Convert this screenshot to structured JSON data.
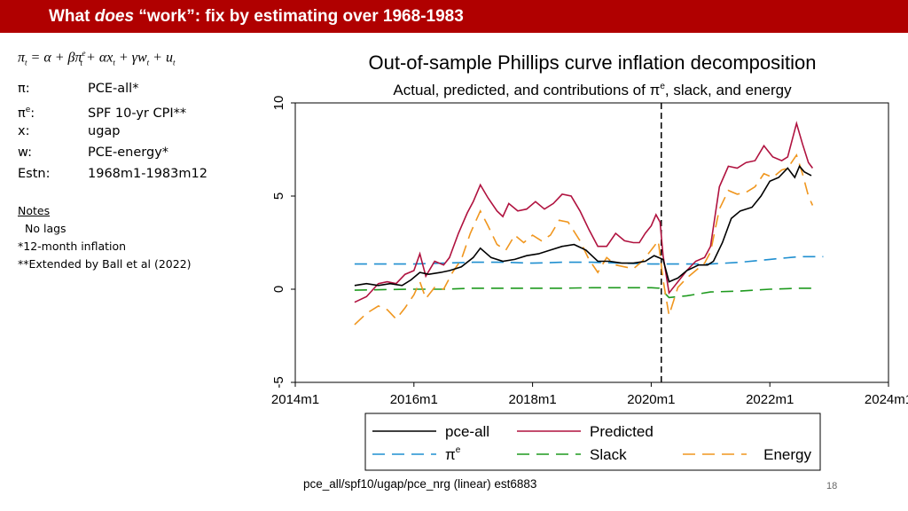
{
  "slide": {
    "title_pre": "What ",
    "title_em": "does",
    "title_post": " “work”: fix by estimating over 1968-1983",
    "page_number": "18",
    "footer": "pce_all/spf10/ugap/pce_nrg (linear) est6883"
  },
  "equation": {
    "pi": "π",
    "eq": " = α + βπ",
    "plus_ax": " + αx",
    "plus_gw": " + γw",
    "plus_u": " + u",
    "sub": "t",
    "sup": "e"
  },
  "definitions": [
    {
      "key": "π:",
      "value": "PCE-all*"
    },
    {
      "key_base": "π",
      "key_sup": "e",
      "key_colon": ":",
      "value": "SPF 10-yr CPI**"
    },
    {
      "key": "x:",
      "value": "ugap"
    },
    {
      "key": "w:",
      "value": "PCE-energy*"
    },
    {
      "key": "Estn:",
      "value": "1968m1-1983m12"
    }
  ],
  "notes": {
    "title": "Notes",
    "lines": [
      "No lags",
      "*12-month inflation",
      "**Extended by Ball et al (2022)"
    ]
  },
  "chart_data": {
    "type": "line",
    "title": "Out-of-sample Phillips curve inflation decomposition",
    "subtitle_pre": "Actual, predicted, and contributions of π",
    "subtitle_sup": "e",
    "subtitle_post": ", slack, and energy",
    "xlim": [
      2014.0,
      2024.0
    ],
    "ylim": [
      -5,
      10
    ],
    "xticks": [
      {
        "value": 2014.0,
        "label": "2014m1"
      },
      {
        "value": 2016.0,
        "label": "2016m1"
      },
      {
        "value": 2018.0,
        "label": "2018m1"
      },
      {
        "value": 2020.0,
        "label": "2020m1"
      },
      {
        "value": 2022.0,
        "label": "2022m1"
      },
      {
        "value": 2024.0,
        "label": "2024m1"
      }
    ],
    "yticks": [
      {
        "value": -5,
        "label": "-5"
      },
      {
        "value": 0,
        "label": "0"
      },
      {
        "value": 5,
        "label": "5"
      },
      {
        "value": 10,
        "label": "10"
      }
    ],
    "vline_x": 2020.17,
    "series": [
      {
        "name": "pce-all",
        "color": "#000000",
        "dash": "none",
        "points": [
          [
            2015.0,
            0.2
          ],
          [
            2015.2,
            0.3
          ],
          [
            2015.4,
            0.2
          ],
          [
            2015.6,
            0.3
          ],
          [
            2015.8,
            0.2
          ],
          [
            2015.95,
            0.5
          ],
          [
            2016.1,
            0.9
          ],
          [
            2016.25,
            0.8
          ],
          [
            2016.45,
            0.9
          ],
          [
            2016.6,
            1.0
          ],
          [
            2016.8,
            1.2
          ],
          [
            2017.0,
            1.7
          ],
          [
            2017.12,
            2.2
          ],
          [
            2017.3,
            1.7
          ],
          [
            2017.5,
            1.5
          ],
          [
            2017.7,
            1.6
          ],
          [
            2017.9,
            1.8
          ],
          [
            2018.1,
            1.9
          ],
          [
            2018.3,
            2.1
          ],
          [
            2018.5,
            2.3
          ],
          [
            2018.7,
            2.4
          ],
          [
            2018.9,
            2.1
          ],
          [
            2019.1,
            1.5
          ],
          [
            2019.3,
            1.5
          ],
          [
            2019.5,
            1.4
          ],
          [
            2019.7,
            1.4
          ],
          [
            2019.9,
            1.5
          ],
          [
            2020.05,
            1.8
          ],
          [
            2020.2,
            1.6
          ],
          [
            2020.3,
            0.4
          ],
          [
            2020.45,
            0.6
          ],
          [
            2020.6,
            1.0
          ],
          [
            2020.8,
            1.3
          ],
          [
            2020.95,
            1.3
          ],
          [
            2021.05,
            1.5
          ],
          [
            2021.2,
            2.5
          ],
          [
            2021.35,
            3.8
          ],
          [
            2021.5,
            4.2
          ],
          [
            2021.7,
            4.4
          ],
          [
            2021.85,
            5.0
          ],
          [
            2022.0,
            5.8
          ],
          [
            2022.15,
            6.0
          ],
          [
            2022.3,
            6.5
          ],
          [
            2022.42,
            6.0
          ],
          [
            2022.5,
            6.6
          ],
          [
            2022.58,
            6.3
          ],
          [
            2022.7,
            6.1
          ]
        ]
      },
      {
        "name": "Predicted",
        "color": "#b0123f",
        "dash": "none",
        "points": [
          [
            2015.0,
            -0.7
          ],
          [
            2015.2,
            -0.4
          ],
          [
            2015.4,
            0.3
          ],
          [
            2015.55,
            0.4
          ],
          [
            2015.7,
            0.3
          ],
          [
            2015.85,
            0.8
          ],
          [
            2016.0,
            1.0
          ],
          [
            2016.1,
            1.9
          ],
          [
            2016.2,
            0.7
          ],
          [
            2016.35,
            1.5
          ],
          [
            2016.5,
            1.3
          ],
          [
            2016.6,
            1.7
          ],
          [
            2016.75,
            3.0
          ],
          [
            2016.9,
            4.1
          ],
          [
            2017.0,
            4.7
          ],
          [
            2017.12,
            5.6
          ],
          [
            2017.25,
            4.9
          ],
          [
            2017.4,
            4.2
          ],
          [
            2017.5,
            3.9
          ],
          [
            2017.6,
            4.6
          ],
          [
            2017.75,
            4.2
          ],
          [
            2017.9,
            4.3
          ],
          [
            2018.05,
            4.7
          ],
          [
            2018.2,
            4.3
          ],
          [
            2018.35,
            4.6
          ],
          [
            2018.5,
            5.1
          ],
          [
            2018.65,
            5.0
          ],
          [
            2018.8,
            4.2
          ],
          [
            2018.95,
            3.2
          ],
          [
            2019.1,
            2.3
          ],
          [
            2019.25,
            2.3
          ],
          [
            2019.4,
            3.0
          ],
          [
            2019.55,
            2.6
          ],
          [
            2019.7,
            2.5
          ],
          [
            2019.8,
            2.5
          ],
          [
            2019.9,
            3.0
          ],
          [
            2020.0,
            3.4
          ],
          [
            2020.08,
            4.0
          ],
          [
            2020.15,
            3.6
          ],
          [
            2020.2,
            1.8
          ],
          [
            2020.3,
            -0.2
          ],
          [
            2020.45,
            0.4
          ],
          [
            2020.6,
            1.0
          ],
          [
            2020.75,
            1.5
          ],
          [
            2020.9,
            1.7
          ],
          [
            2021.0,
            2.3
          ],
          [
            2021.15,
            5.5
          ],
          [
            2021.3,
            6.6
          ],
          [
            2021.45,
            6.5
          ],
          [
            2021.6,
            6.8
          ],
          [
            2021.75,
            6.9
          ],
          [
            2021.9,
            7.7
          ],
          [
            2022.05,
            7.1
          ],
          [
            2022.2,
            6.9
          ],
          [
            2022.3,
            7.1
          ],
          [
            2022.45,
            8.9
          ],
          [
            2022.55,
            7.8
          ],
          [
            2022.65,
            6.8
          ],
          [
            2022.72,
            6.5
          ]
        ]
      },
      {
        "name": "πe",
        "color": "#1f8fd0",
        "dash": "14,8",
        "points": [
          [
            2015.0,
            1.35
          ],
          [
            2015.5,
            1.35
          ],
          [
            2016.0,
            1.35
          ],
          [
            2016.5,
            1.4
          ],
          [
            2017.0,
            1.45
          ],
          [
            2017.5,
            1.45
          ],
          [
            2018.0,
            1.4
          ],
          [
            2018.5,
            1.45
          ],
          [
            2019.0,
            1.45
          ],
          [
            2019.5,
            1.4
          ],
          [
            2020.0,
            1.35
          ],
          [
            2020.5,
            1.35
          ],
          [
            2021.0,
            1.35
          ],
          [
            2021.5,
            1.45
          ],
          [
            2022.0,
            1.6
          ],
          [
            2022.5,
            1.75
          ],
          [
            2022.9,
            1.75
          ]
        ]
      },
      {
        "name": "Slack",
        "color": "#1e9a1e",
        "dash": "14,8",
        "points": [
          [
            2015.0,
            -0.05
          ],
          [
            2015.5,
            -0.02
          ],
          [
            2016.0,
            0.0
          ],
          [
            2016.5,
            0.0
          ],
          [
            2017.0,
            0.05
          ],
          [
            2017.5,
            0.05
          ],
          [
            2018.0,
            0.05
          ],
          [
            2018.5,
            0.05
          ],
          [
            2019.0,
            0.08
          ],
          [
            2019.5,
            0.08
          ],
          [
            2020.0,
            0.08
          ],
          [
            2020.15,
            0.05
          ],
          [
            2020.3,
            -0.45
          ],
          [
            2020.6,
            -0.35
          ],
          [
            2021.0,
            -0.15
          ],
          [
            2021.5,
            -0.1
          ],
          [
            2022.0,
            0.0
          ],
          [
            2022.5,
            0.05
          ],
          [
            2022.7,
            0.05
          ]
        ]
      },
      {
        "name": "Energy",
        "color": "#f0961e",
        "dash": "14,8",
        "points": [
          [
            2015.0,
            -1.9
          ],
          [
            2015.2,
            -1.3
          ],
          [
            2015.4,
            -0.9
          ],
          [
            2015.55,
            -1.1
          ],
          [
            2015.7,
            -1.6
          ],
          [
            2015.85,
            -1.0
          ],
          [
            2016.0,
            -0.3
          ],
          [
            2016.1,
            0.4
          ],
          [
            2016.2,
            -0.5
          ],
          [
            2016.35,
            0.1
          ],
          [
            2016.5,
            0.0
          ],
          [
            2016.65,
            0.9
          ],
          [
            2016.8,
            1.6
          ],
          [
            2016.95,
            3.0
          ],
          [
            2017.12,
            4.2
          ],
          [
            2017.25,
            3.4
          ],
          [
            2017.4,
            2.4
          ],
          [
            2017.55,
            2.1
          ],
          [
            2017.7,
            2.9
          ],
          [
            2017.85,
            2.5
          ],
          [
            2018.0,
            2.9
          ],
          [
            2018.15,
            2.6
          ],
          [
            2018.3,
            2.9
          ],
          [
            2018.45,
            3.7
          ],
          [
            2018.6,
            3.6
          ],
          [
            2018.8,
            2.6
          ],
          [
            2018.95,
            1.6
          ],
          [
            2019.1,
            0.9
          ],
          [
            2019.25,
            1.7
          ],
          [
            2019.4,
            1.3
          ],
          [
            2019.55,
            1.2
          ],
          [
            2019.7,
            1.1
          ],
          [
            2019.85,
            1.5
          ],
          [
            2020.0,
            2.1
          ],
          [
            2020.12,
            2.6
          ],
          [
            2020.2,
            0.5
          ],
          [
            2020.3,
            -1.4
          ],
          [
            2020.45,
            0.1
          ],
          [
            2020.6,
            0.6
          ],
          [
            2020.75,
            1.0
          ],
          [
            2020.9,
            1.4
          ],
          [
            2021.0,
            2.0
          ],
          [
            2021.15,
            4.3
          ],
          [
            2021.3,
            5.3
          ],
          [
            2021.45,
            5.1
          ],
          [
            2021.6,
            5.2
          ],
          [
            2021.75,
            5.5
          ],
          [
            2021.9,
            6.2
          ],
          [
            2022.05,
            6.0
          ],
          [
            2022.2,
            6.4
          ],
          [
            2022.3,
            6.5
          ],
          [
            2022.45,
            7.2
          ],
          [
            2022.55,
            6.2
          ],
          [
            2022.65,
            5.0
          ],
          [
            2022.72,
            4.5
          ]
        ]
      }
    ],
    "legend": [
      {
        "label": "pce-all",
        "color": "#000000",
        "dash": "none",
        "col": 0,
        "row": 0
      },
      {
        "label": "Predicted",
        "color": "#b0123f",
        "dash": "none",
        "col": 1,
        "row": 0
      },
      {
        "label_base": "π",
        "label_sup": "e",
        "color": "#1f8fd0",
        "dash": "14,8",
        "col": 0,
        "row": 1
      },
      {
        "label": "Slack",
        "color": "#1e9a1e",
        "dash": "14,8",
        "col": 1,
        "row": 1
      },
      {
        "label": "Energy",
        "color": "#f0961e",
        "dash": "14,8",
        "col": 2,
        "row": 1
      }
    ]
  }
}
